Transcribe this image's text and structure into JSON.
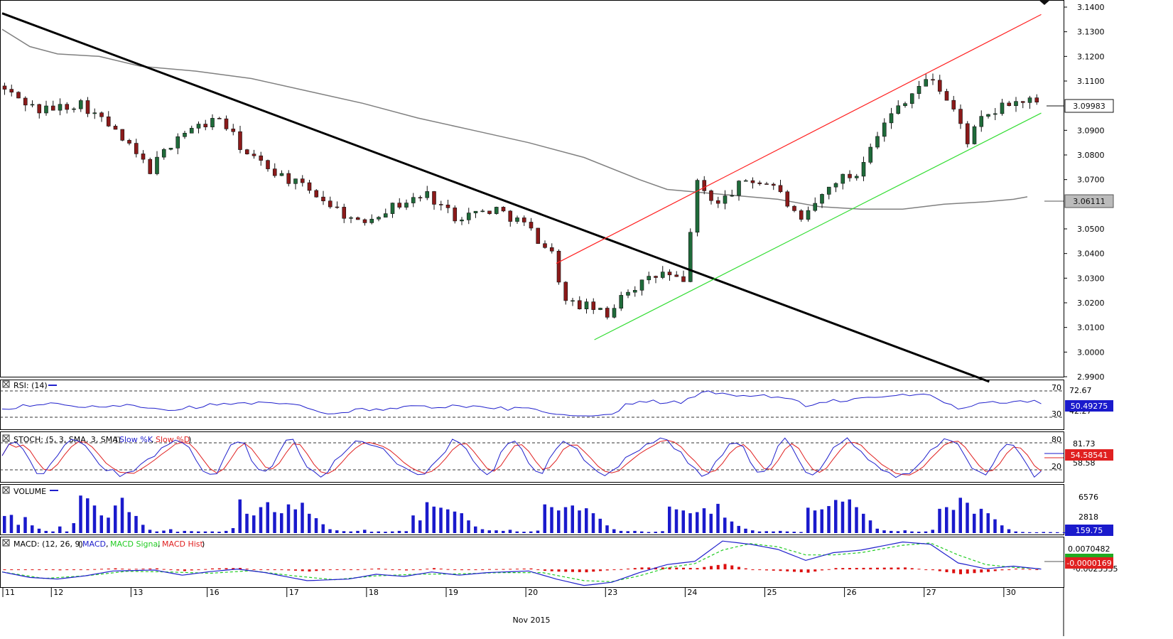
{
  "colors": {
    "bull": "#1f6b3a",
    "bear": "#8b1a1a",
    "trendline": "#000000",
    "channel_upper": "#ff2020",
    "channel_lower": "#33dd33",
    "ma": "#808080",
    "rsi": "#2020cc",
    "stoch_k": "#2020cc",
    "stoch_d": "#e02020",
    "volume": "#1a1acc",
    "macd": "#2020cc",
    "macd_signal": "#22cc22",
    "macd_hist": "#dd1111",
    "price_badge": "#111111",
    "ma_badge": "#888888",
    "ind_badge": "#1a1acc"
  },
  "chart_data": [
    {
      "type": "candlestick",
      "panel": "price",
      "ylim": [
        2.99,
        3.14
      ],
      "y_ticks": [
        "3.1400",
        "3.1300",
        "3.1200",
        "3.1100",
        "3.0900",
        "3.0800",
        "3.0700",
        "3.0500",
        "3.0400",
        "3.0300",
        "3.0200",
        "3.0100",
        "3.0000",
        "2.9900"
      ],
      "x_labels": [
        "11",
        "12",
        "13",
        "16",
        "17",
        "18",
        "19",
        "20",
        "23",
        "24",
        "25",
        "26",
        "27",
        "30"
      ],
      "x_title": "Nov 2015",
      "last_price_label": "3.09983",
      "ma_label": "3.06111",
      "close_path": [
        [
          0,
          3.108
        ],
        [
          6,
          3.098
        ],
        [
          12,
          3.101
        ],
        [
          16,
          3.092
        ],
        [
          22,
          3.074
        ],
        [
          26,
          3.088
        ],
        [
          32,
          3.095
        ],
        [
          36,
          3.08
        ],
        [
          42,
          3.07
        ],
        [
          46,
          3.064
        ],
        [
          52,
          3.052
        ],
        [
          56,
          3.058
        ],
        [
          62,
          3.064
        ],
        [
          66,
          3.055
        ],
        [
          72,
          3.058
        ],
        [
          76,
          3.052
        ],
        [
          80,
          3.04
        ],
        [
          82,
          3.02
        ],
        [
          86,
          3.018
        ],
        [
          88,
          3.014
        ],
        [
          90,
          3.024
        ],
        [
          93,
          3.028
        ],
        [
          96,
          3.032
        ],
        [
          99,
          3.028
        ],
        [
          100,
          3.05
        ],
        [
          101,
          3.068
        ],
        [
          104,
          3.06
        ],
        [
          108,
          3.07
        ],
        [
          112,
          3.068
        ],
        [
          116,
          3.052
        ],
        [
          118,
          3.06
        ],
        [
          121,
          3.07
        ],
        [
          124,
          3.072
        ],
        [
          126,
          3.085
        ],
        [
          130,
          3.1
        ],
        [
          133,
          3.108
        ],
        [
          135,
          3.111
        ],
        [
          138,
          3.098
        ],
        [
          140,
          3.086
        ],
        [
          142,
          3.094
        ],
        [
          146,
          3.101
        ],
        [
          149,
          3.102
        ],
        [
          150,
          3.1
        ]
      ],
      "trend_line": [
        [
          3.1375,
          0
        ],
        [
          2.988,
          142.5
        ]
      ],
      "channel_upper": [
        [
          3.036,
          80
        ],
        [
          3.137,
          150
        ]
      ],
      "channel_lower": [
        [
          3.005,
          85.5
        ],
        [
          3.097,
          150
        ]
      ],
      "ma_path": [
        [
          0,
          3.131
        ],
        [
          4,
          3.124
        ],
        [
          8,
          3.121
        ],
        [
          14,
          3.12
        ],
        [
          20,
          3.116
        ],
        [
          28,
          3.114
        ],
        [
          36,
          3.111
        ],
        [
          44,
          3.106
        ],
        [
          52,
          3.101
        ],
        [
          60,
          3.095
        ],
        [
          68,
          3.09
        ],
        [
          76,
          3.085
        ],
        [
          84,
          3.079
        ],
        [
          92,
          3.07
        ],
        [
          96,
          3.066
        ],
        [
          104,
          3.064
        ],
        [
          112,
          3.062
        ],
        [
          118,
          3.059
        ],
        [
          124,
          3.058
        ],
        [
          130,
          3.058
        ],
        [
          136,
          3.06
        ],
        [
          142,
          3.061
        ],
        [
          146,
          3.062
        ],
        [
          148,
          3.063
        ]
      ]
    },
    {
      "type": "line",
      "panel": "rsi",
      "title": "RSI: (14)",
      "ylim": [
        0,
        100
      ],
      "levels": [
        "70",
        "30"
      ],
      "tick_labels": [
        "72.67",
        "42.27"
      ],
      "last_label": "50.49275",
      "path": [
        [
          0,
          40
        ],
        [
          6,
          51
        ],
        [
          12,
          43
        ],
        [
          18,
          50
        ],
        [
          24,
          39
        ],
        [
          30,
          48
        ],
        [
          36,
          52
        ],
        [
          42,
          50
        ],
        [
          46,
          30
        ],
        [
          52,
          38
        ],
        [
          58,
          44
        ],
        [
          64,
          46
        ],
        [
          70,
          42
        ],
        [
          76,
          40
        ],
        [
          80,
          28
        ],
        [
          84,
          22
        ],
        [
          88,
          26
        ],
        [
          90,
          50
        ],
        [
          94,
          55
        ],
        [
          98,
          53
        ],
        [
          101,
          78
        ],
        [
          104,
          70
        ],
        [
          110,
          68
        ],
        [
          114,
          64
        ],
        [
          116,
          44
        ],
        [
          120,
          57
        ],
        [
          126,
          64
        ],
        [
          130,
          69
        ],
        [
          134,
          70
        ],
        [
          138,
          40
        ],
        [
          142,
          57
        ],
        [
          146,
          54
        ],
        [
          150,
          55
        ]
      ]
    },
    {
      "type": "line",
      "panel": "stochastic",
      "title": "STOCH: (5, 3, SMA, 3, SMA)",
      "series": [
        {
          "name": "Slow %K"
        },
        {
          "name": "Slow %D"
        }
      ],
      "ylim": [
        0,
        100
      ],
      "levels": [
        "80",
        "20"
      ],
      "tick_labels": [
        "81.73",
        "58.58"
      ],
      "last_label": "54.58541"
    },
    {
      "type": "bar",
      "panel": "volume",
      "title": "VOLUME",
      "ylim": [
        0,
        8500
      ],
      "tick_labels": [
        "6576",
        "2818"
      ],
      "last_label": "159.75",
      "values": [
        3100,
        3300,
        1500,
        2900,
        1400,
        800,
        400,
        300,
        1200,
        300,
        1800,
        6800,
        6300,
        5000,
        3200,
        2800,
        5000,
        6400,
        3800,
        3100,
        1500,
        600,
        300,
        450,
        700,
        250,
        400,
        350,
        300,
        300,
        300,
        250,
        400,
        900,
        6100,
        3500,
        3200,
        4700,
        5600,
        3800,
        3600,
        5200,
        4300,
        5500,
        3500,
        2700,
        1600,
        700,
        500,
        350,
        300,
        400,
        600,
        250,
        300,
        250,
        300,
        400,
        350,
        3200,
        2300,
        5600,
        4800,
        4600,
        4300,
        3900,
        3600,
        2300,
        1200,
        700,
        500,
        500,
        400,
        600,
        300,
        250,
        300,
        450,
        5200,
        4700,
        4100,
        4700,
        5000,
        4100,
        4500,
        3600,
        2600,
        1400,
        700,
        400,
        350,
        400,
        300,
        200,
        250,
        350,
        4800,
        4300,
        4100,
        3600,
        3800,
        4500,
        3500,
        5300,
        2800,
        2100,
        1300,
        800,
        500,
        300,
        350,
        300,
        400,
        300,
        250,
        200,
        4600,
        4100,
        4300,
        4900,
        6000,
        5700,
        6100,
        4700,
        3500,
        2300,
        800,
        500,
        400,
        350,
        500,
        300,
        250,
        300,
        600,
        4400,
        4700,
        4200,
        6400,
        5500,
        3500,
        4400,
        3600,
        2500,
        1400,
        700,
        300,
        200,
        160,
        150,
        200,
        180,
        160,
        150,
        150
      ]
    },
    {
      "type": "line",
      "panel": "macd",
      "title": "MACD: (12, 26, 9)",
      "series": [
        {
          "name": "MACD"
        },
        {
          "name": "MACD Signal"
        },
        {
          "name": "MACD Hist"
        }
      ],
      "ylim": [
        -0.0055,
        0.0095
      ],
      "tick_labels": [
        "0.0070482",
        "-0.0025535"
      ],
      "last_label": "-0.0000169",
      "macd_path": [
        [
          0,
          -0.0008
        ],
        [
          4,
          -0.0025
        ],
        [
          8,
          -0.003
        ],
        [
          12,
          -0.002
        ],
        [
          16,
          -0.0005
        ],
        [
          22,
          -0.0002
        ],
        [
          26,
          -0.0018
        ],
        [
          30,
          -0.0007
        ],
        [
          34,
          0.0001
        ],
        [
          38,
          -0.001
        ],
        [
          44,
          -0.0035
        ],
        [
          50,
          -0.003
        ],
        [
          54,
          -0.0015
        ],
        [
          58,
          -0.0022
        ],
        [
          62,
          -0.0008
        ],
        [
          66,
          -0.0018
        ],
        [
          70,
          -0.001
        ],
        [
          76,
          -0.0005
        ],
        [
          80,
          -0.003
        ],
        [
          84,
          -0.005
        ],
        [
          88,
          -0.004
        ],
        [
          92,
          -0.001
        ],
        [
          96,
          0.0015
        ],
        [
          100,
          0.0025
        ],
        [
          104,
          0.0088
        ],
        [
          108,
          0.0078
        ],
        [
          112,
          0.0062
        ],
        [
          116,
          0.0028
        ],
        [
          120,
          0.0052
        ],
        [
          124,
          0.006
        ],
        [
          130,
          0.0085
        ],
        [
          134,
          0.0078
        ],
        [
          138,
          0.002
        ],
        [
          142,
          0.0002
        ],
        [
          146,
          0.001
        ],
        [
          150,
          0.0001
        ]
      ],
      "signal_path": [
        [
          0,
          -0.0008
        ],
        [
          6,
          -0.0028
        ],
        [
          12,
          -0.002
        ],
        [
          18,
          -0.0006
        ],
        [
          24,
          -0.0008
        ],
        [
          30,
          -0.0012
        ],
        [
          36,
          -0.0004
        ],
        [
          42,
          -0.002
        ],
        [
          48,
          -0.0032
        ],
        [
          54,
          -0.002
        ],
        [
          60,
          -0.0015
        ],
        [
          66,
          -0.0014
        ],
        [
          72,
          -0.001
        ],
        [
          78,
          -0.001
        ],
        [
          84,
          -0.0035
        ],
        [
          88,
          -0.0038
        ],
        [
          92,
          -0.002
        ],
        [
          96,
          0.0005
        ],
        [
          100,
          0.0018
        ],
        [
          104,
          0.006
        ],
        [
          108,
          0.008
        ],
        [
          112,
          0.007
        ],
        [
          116,
          0.0045
        ],
        [
          120,
          0.0045
        ],
        [
          124,
          0.0052
        ],
        [
          130,
          0.0075
        ],
        [
          134,
          0.0082
        ],
        [
          138,
          0.0045
        ],
        [
          142,
          0.0015
        ],
        [
          146,
          0.0006
        ],
        [
          150,
          0.0002
        ]
      ]
    }
  ]
}
